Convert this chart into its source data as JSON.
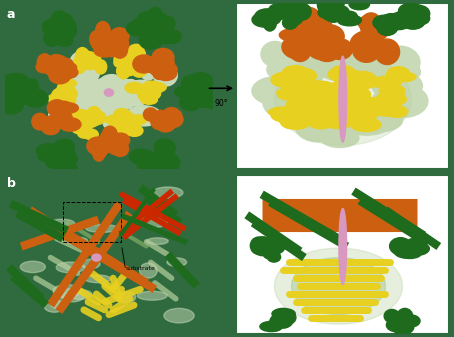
{
  "background_color": "#2f6b3e",
  "figure_width": 4.54,
  "figure_height": 3.37,
  "dpi": 100,
  "colors": {
    "dark_green": "#1e6b1e",
    "orange": "#cc6010",
    "yellow": "#e8d020",
    "light_green": "#90b870",
    "pale_green": "#b8d0a0",
    "very_pale_green": "#c8dab8",
    "pink": "#d898c0",
    "white": "#ffffff",
    "red_orange": "#cc2800",
    "dark_bg": "#2f6b3e",
    "inset_bg": "#2a6535"
  },
  "label_color": "white",
  "label_fontsize": 9,
  "arrow_text": "90°",
  "substrate_text": "substrate"
}
